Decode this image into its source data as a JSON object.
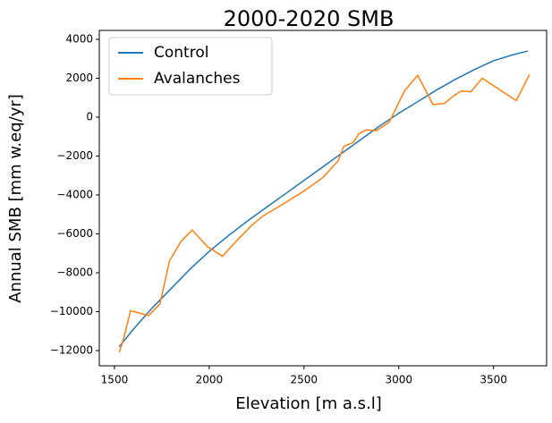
{
  "chart_data": {
    "type": "line",
    "title": "2000-2020 SMB",
    "x_label": "Elevation [m a.s.l]",
    "y_label": "Annual SMB [mm w.eq/yr]",
    "xlim": [
      1420,
      3780
    ],
    "ylim": [
      -12780,
      4460
    ],
    "xticks": [
      1500,
      2000,
      2500,
      3000,
      3500
    ],
    "yticks": [
      {
        "value": -12000,
        "label": "−12000"
      },
      {
        "value": -10000,
        "label": "−10000"
      },
      {
        "value": -8000,
        "label": "−8000"
      },
      {
        "value": -6000,
        "label": "−6000"
      },
      {
        "value": -4000,
        "label": "−4000"
      },
      {
        "value": -2000,
        "label": "−2000"
      },
      0,
      2000,
      4000
    ],
    "legend_position": "upper left",
    "series": [
      {
        "name": "Control",
        "color": "#1f77b4",
        "x": [
          1525,
          1600,
          1700,
          1800,
          1900,
          2000,
          2100,
          2200,
          2300,
          2400,
          2500,
          2600,
          2700,
          2800,
          2900,
          3000,
          3100,
          3200,
          3300,
          3400,
          3500,
          3600,
          3680
        ],
        "values": [
          -11800,
          -10900,
          -9800,
          -8800,
          -7800,
          -6900,
          -6100,
          -5350,
          -4650,
          -3950,
          -3250,
          -2550,
          -1850,
          -1150,
          -450,
          200,
          800,
          1400,
          1950,
          2450,
          2900,
          3200,
          3400
        ]
      },
      {
        "name": "Avalanches",
        "color": "#ff7f0e",
        "x": [
          1525,
          1545,
          1585,
          1680,
          1740,
          1790,
          1850,
          1910,
          1990,
          2070,
          2140,
          2220,
          2280,
          2400,
          2500,
          2600,
          2680,
          2710,
          2760,
          2790,
          2830,
          2880,
          2950,
          3030,
          3100,
          3180,
          3240,
          3290,
          3330,
          3380,
          3440,
          3620,
          3690
        ],
        "values": [
          -12100,
          -11500,
          -9950,
          -10200,
          -9600,
          -7400,
          -6400,
          -5800,
          -6650,
          -7150,
          -6400,
          -5600,
          -5100,
          -4400,
          -3800,
          -3100,
          -2250,
          -1500,
          -1300,
          -850,
          -650,
          -700,
          -250,
          1350,
          2150,
          650,
          700,
          1100,
          1350,
          1300,
          2000,
          850,
          2200
        ]
      }
    ]
  }
}
